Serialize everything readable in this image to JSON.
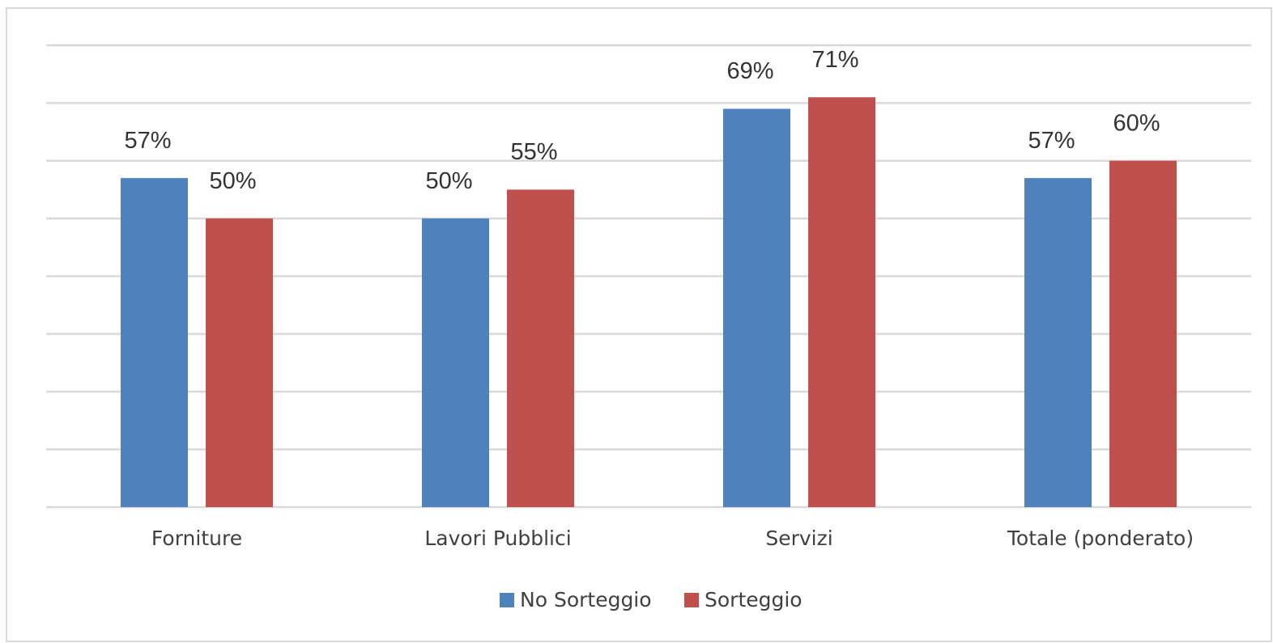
{
  "chart_data": {
    "type": "bar",
    "categories": [
      "Forniture",
      "Lavori Pubblici",
      "Servizi",
      "Totale (ponderato)"
    ],
    "series": [
      {
        "name": "No Sorteggio",
        "color": "#4f81bd",
        "values": [
          57,
          50,
          69,
          57
        ],
        "value_labels": [
          "57%",
          "50%",
          "69%",
          "57%"
        ]
      },
      {
        "name": "Sorteggio",
        "color": "#c0504d",
        "values": [
          50,
          55,
          71,
          60
        ],
        "value_labels": [
          "50%",
          "55%",
          "71%",
          "60%"
        ]
      }
    ],
    "ylim": [
      0,
      80
    ],
    "yticks": [
      0,
      10,
      20,
      30,
      40,
      50,
      60,
      70,
      80
    ],
    "grid": true
  }
}
